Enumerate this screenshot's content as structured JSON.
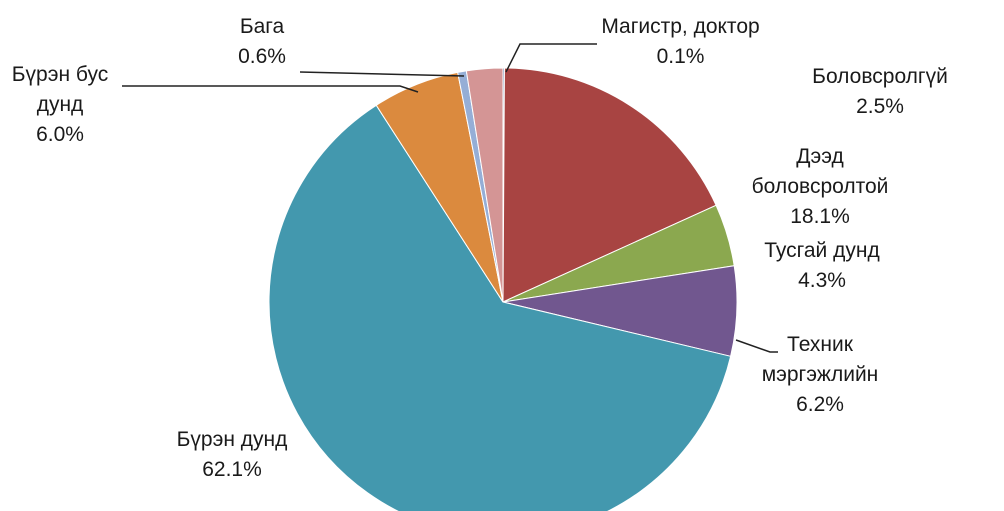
{
  "chart_data": {
    "type": "pie",
    "categories": [
      "Магистр, доктор",
      "Дээд боловсролтой",
      "Тусгай дунд",
      "Техник мэргэжлийн",
      "Бүрэн дунд",
      "Бүрэн бус дунд",
      "Бага",
      "Боловсролгүй"
    ],
    "values": [
      0.1,
      18.1,
      4.3,
      6.2,
      62.1,
      6.0,
      0.6,
      2.5
    ],
    "value_labels": [
      "0.1%",
      "18.1%",
      "4.3%",
      "6.2%",
      "62.1%",
      "6.0%",
      "0.6%",
      "2.5%"
    ],
    "colors": [
      "#4b6fa5",
      "#a84442",
      "#8ba84f",
      "#71578f",
      "#4398ae",
      "#db8a3e",
      "#95aed6",
      "#d49595"
    ]
  }
}
